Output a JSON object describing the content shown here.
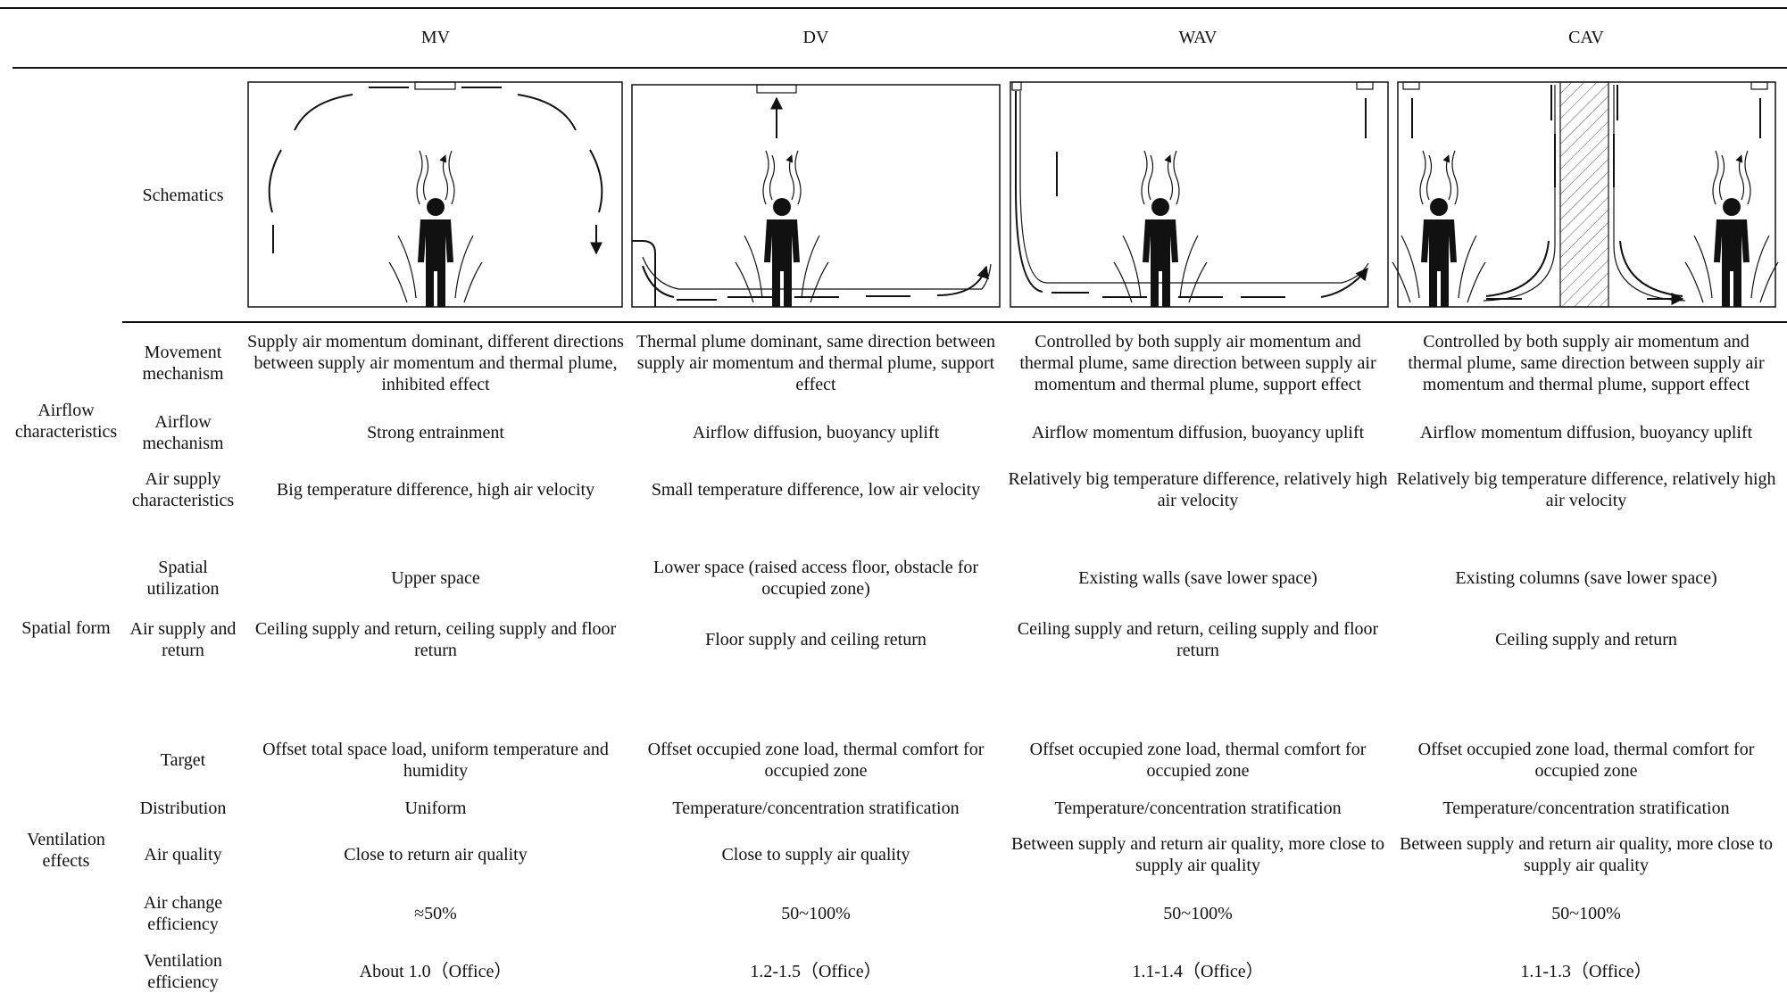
{
  "header": {
    "columns": [
      "MV",
      "DV",
      "WAV",
      "CAV"
    ]
  },
  "schematics_label": "Schematics",
  "groups": [
    {
      "label": "Airflow characteristics",
      "rows": [
        {
          "label": "Movement mechanism",
          "cells": [
            "Supply air momentum dominant, different directions between supply air momentum and thermal plume, inhibited effect",
            "Thermal plume dominant, same direction between supply air momentum and thermal plume, support effect",
            "Controlled by both supply air momentum and thermal plume, same direction between supply air momentum and thermal plume, support effect",
            "Controlled by both supply air momentum and thermal plume, same direction between supply air momentum and thermal plume, support effect"
          ]
        },
        {
          "label": "Airflow mechanism",
          "cells": [
            "Strong entrainment",
            "Airflow diffusion, buoyancy uplift",
            "Airflow momentum diffusion, buoyancy uplift",
            "Airflow momentum diffusion, buoyancy uplift"
          ]
        },
        {
          "label": "Air supply characteristics",
          "cells": [
            "Big temperature difference, high air velocity",
            "Small temperature difference, low air velocity",
            "Relatively big temperature difference, relatively high air velocity",
            "Relatively big temperature difference, relatively high air velocity"
          ]
        }
      ]
    },
    {
      "label": "Spatial form",
      "rows": [
        {
          "label": "Spatial utilization",
          "cells": [
            "Upper space",
            "Lower space (raised access floor, obstacle for occupied zone)",
            "Existing walls (save lower space)",
            "Existing columns (save lower space)"
          ]
        },
        {
          "label": "Air supply and return",
          "cells": [
            "Ceiling supply and return, ceiling supply and floor return",
            "Floor supply and ceiling return",
            "Ceiling supply and return, ceiling supply and floor return",
            "Ceiling supply and return"
          ]
        }
      ]
    },
    {
      "label": "Ventilation effects",
      "rows": [
        {
          "label": "Target",
          "cells": [
            "Offset total space load, uniform temperature and humidity",
            "Offset occupied zone load, thermal comfort for occupied zone",
            "Offset occupied zone load, thermal comfort for occupied zone",
            "Offset occupied zone load, thermal comfort for occupied zone"
          ]
        },
        {
          "label": "Distribution",
          "cells": [
            "Uniform",
            "Temperature/concentration stratification",
            "Temperature/concentration stratification",
            "Temperature/concentration stratification"
          ]
        },
        {
          "label": "Air quality",
          "cells": [
            "Close to return air quality",
            "Close to supply air quality",
            "Between supply and return air quality, more close to supply air quality",
            "Between supply and return air quality, more close to supply air quality"
          ]
        },
        {
          "label": "Air change efficiency",
          "cells": [
            "≈50%",
            "50~100%",
            "50~100%",
            "50~100%"
          ]
        },
        {
          "label": "Ventilation efficiency",
          "cells": [
            "About 1.0（Office）",
            "1.2-1.5（Office）",
            "1.1-1.4（Office）",
            "1.1-1.3（Office）"
          ]
        }
      ]
    }
  ]
}
